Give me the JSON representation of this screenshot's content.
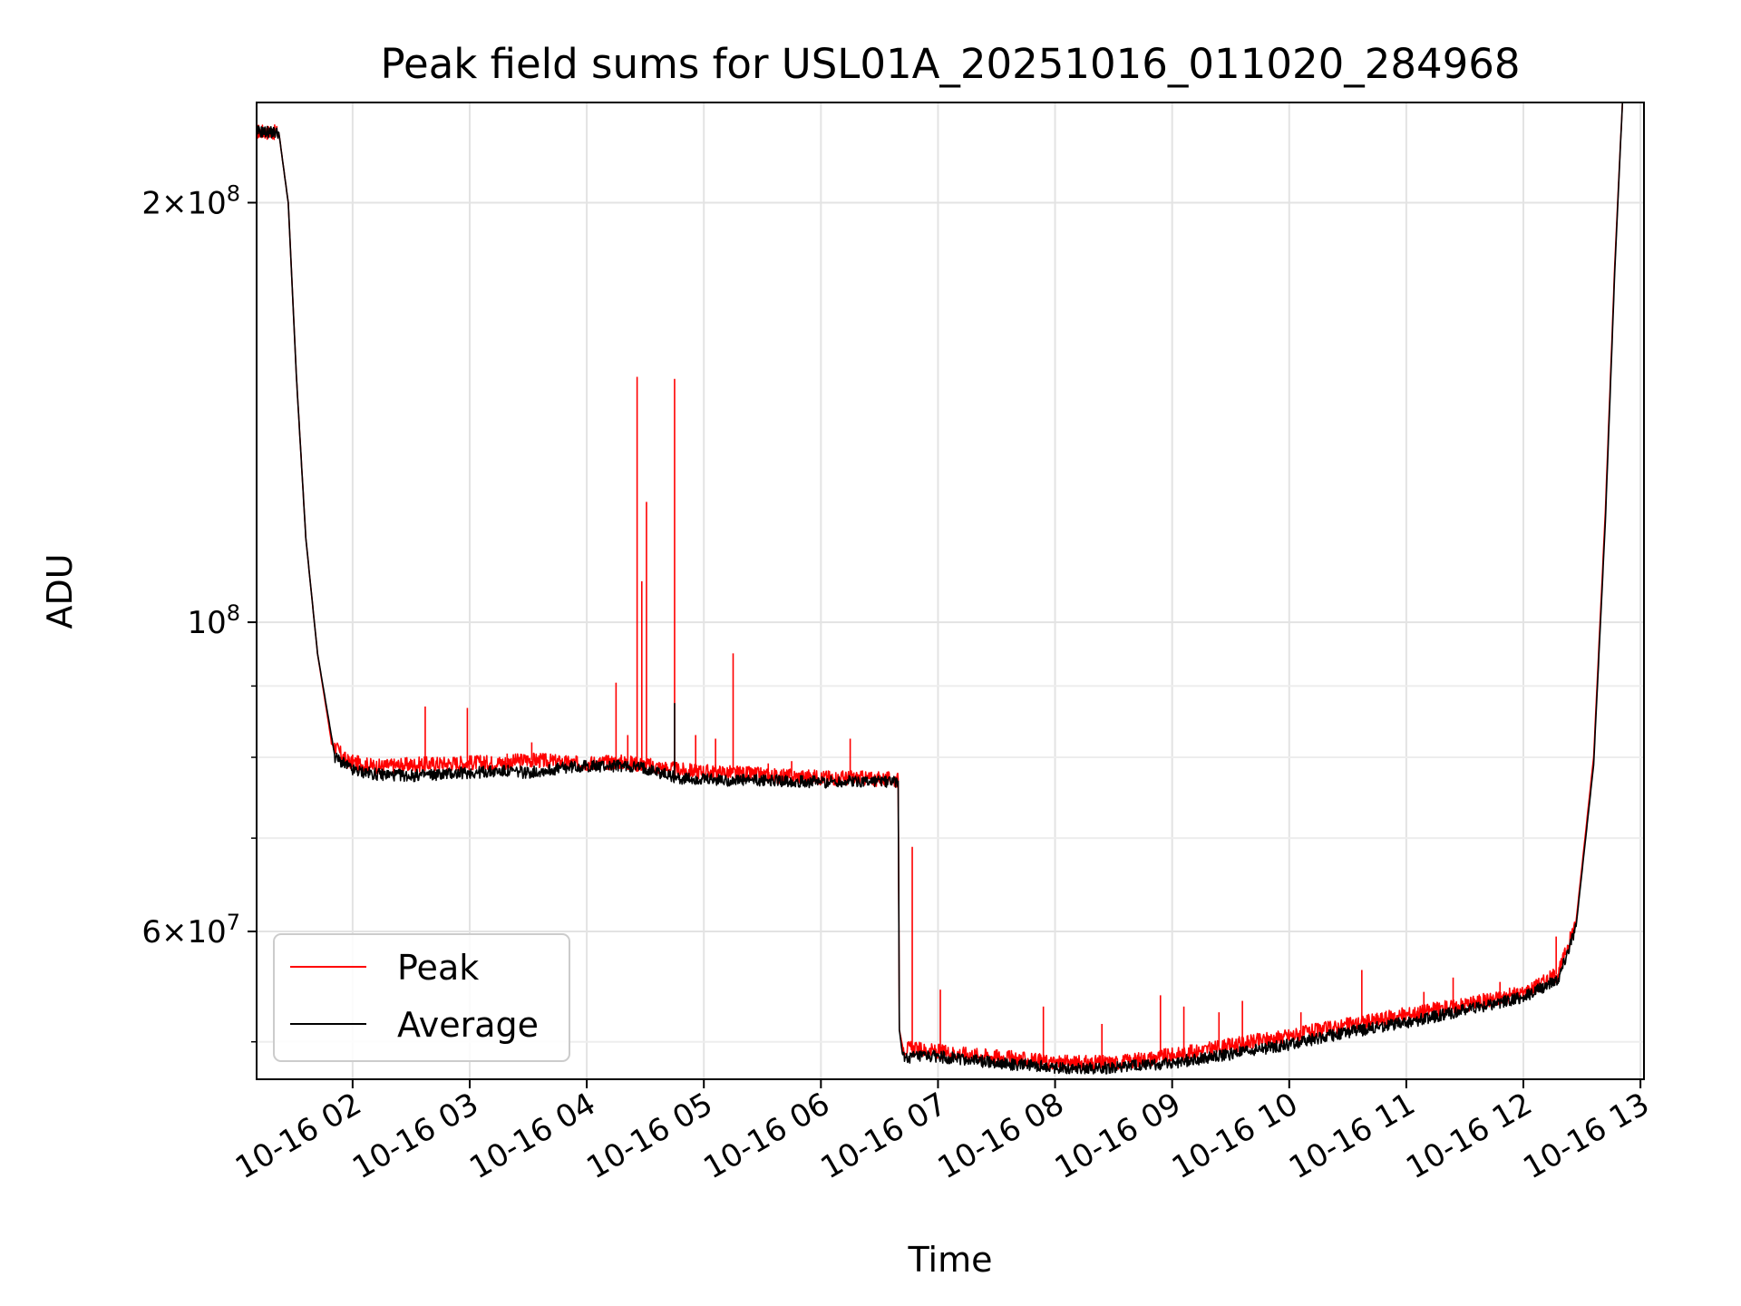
{
  "chart_data": {
    "type": "line",
    "title": "Peak field sums for USL01A_20251016_011020_284968",
    "xlabel": "Time",
    "ylabel": "ADU",
    "yscale": "log",
    "xlim_hours": [
      1.18,
      13.03
    ],
    "ylim": [
      47000000,
      236000000
    ],
    "grid": true,
    "legend_position": "lower-left",
    "x_ticks": [
      {
        "hour": 2,
        "label": "10-16 02"
      },
      {
        "hour": 3,
        "label": "10-16 03"
      },
      {
        "hour": 4,
        "label": "10-16 04"
      },
      {
        "hour": 5,
        "label": "10-16 05"
      },
      {
        "hour": 6,
        "label": "10-16 06"
      },
      {
        "hour": 7,
        "label": "10-16 07"
      },
      {
        "hour": 8,
        "label": "10-16 08"
      },
      {
        "hour": 9,
        "label": "10-16 09"
      },
      {
        "hour": 10,
        "label": "10-16 10"
      },
      {
        "hour": 11,
        "label": "10-16 11"
      },
      {
        "hour": 12,
        "label": "10-16 12"
      },
      {
        "hour": 13,
        "label": "10-16 13"
      }
    ],
    "y_major_ticks": [
      {
        "value": 60000000,
        "mantissa": "6",
        "exponent": "7"
      },
      {
        "value": 100000000,
        "mantissa": "",
        "exponent": "8"
      },
      {
        "value": 200000000,
        "mantissa": "2",
        "exponent": "8"
      }
    ],
    "y_minor_ticks": [
      50000000,
      70000000,
      80000000,
      90000000
    ],
    "series": [
      {
        "name": "Peak",
        "color": "#ff0000",
        "baseline": [
          [
            1.18,
            225000000
          ],
          [
            1.37,
            224500000
          ],
          [
            1.45,
            200000000
          ],
          [
            1.52,
            150000000
          ],
          [
            1.6,
            115000000
          ],
          [
            1.7,
            95000000
          ],
          [
            1.82,
            82000000
          ],
          [
            1.95,
            79500000
          ],
          [
            2.2,
            78800000
          ],
          [
            2.6,
            79100000
          ],
          [
            3.0,
            79300000
          ],
          [
            3.3,
            79300000
          ],
          [
            3.5,
            79700000
          ],
          [
            3.9,
            79200000
          ],
          [
            4.3,
            79400000
          ],
          [
            4.5,
            79000000
          ],
          [
            4.8,
            78300000
          ],
          [
            5.2,
            78000000
          ],
          [
            5.6,
            77600000
          ],
          [
            6.0,
            77400000
          ],
          [
            6.3,
            77300000
          ],
          [
            6.66,
            77100000
          ],
          [
            6.67,
            51000000
          ],
          [
            6.7,
            49500000
          ],
          [
            7.0,
            49200000
          ],
          [
            7.5,
            48800000
          ],
          [
            8.0,
            48300000
          ],
          [
            8.5,
            48300000
          ],
          [
            9.0,
            48900000
          ],
          [
            9.5,
            49700000
          ],
          [
            10.0,
            50500000
          ],
          [
            10.5,
            51400000
          ],
          [
            11.0,
            52300000
          ],
          [
            11.5,
            53200000
          ],
          [
            12.0,
            54200000
          ],
          [
            12.3,
            56000000
          ],
          [
            12.45,
            61000000
          ],
          [
            12.6,
            80000000
          ],
          [
            12.7,
            120000000
          ],
          [
            12.78,
            180000000
          ],
          [
            12.85,
            240000000
          ]
        ],
        "spikes": [
          [
            2.62,
            87000000
          ],
          [
            2.98,
            86800000
          ],
          [
            3.32,
            80500000
          ],
          [
            3.53,
            82000000
          ],
          [
            4.25,
            90500000
          ],
          [
            4.35,
            83000000
          ],
          [
            4.43,
            150000000
          ],
          [
            4.47,
            107000000
          ],
          [
            4.51,
            122000000
          ],
          [
            4.75,
            149500000
          ],
          [
            4.93,
            83000000
          ],
          [
            5.1,
            82500000
          ],
          [
            5.25,
            95000000
          ],
          [
            5.55,
            79200000
          ],
          [
            5.75,
            79500000
          ],
          [
            6.25,
            82500000
          ],
          [
            6.78,
            69000000
          ],
          [
            7.02,
            54500000
          ],
          [
            7.9,
            53000000
          ],
          [
            8.4,
            51500000
          ],
          [
            8.9,
            54000000
          ],
          [
            9.1,
            53000000
          ],
          [
            9.4,
            52500000
          ],
          [
            9.6,
            53500000
          ],
          [
            10.1,
            52500000
          ],
          [
            10.62,
            56300000
          ],
          [
            10.9,
            52500000
          ],
          [
            11.15,
            54300000
          ],
          [
            11.4,
            55600000
          ],
          [
            11.8,
            55200000
          ],
          [
            12.12,
            55400000
          ],
          [
            12.28,
            59500000
          ]
        ]
      },
      {
        "name": "Average",
        "color": "#000000",
        "baseline": [
          [
            1.18,
            225000000
          ],
          [
            1.37,
            224500000
          ],
          [
            1.45,
            200000000
          ],
          [
            1.52,
            150000000
          ],
          [
            1.6,
            115000000
          ],
          [
            1.7,
            95000000
          ],
          [
            1.85,
            80000000
          ],
          [
            2.0,
            78300000
          ],
          [
            2.2,
            77800000
          ],
          [
            2.5,
            77600000
          ],
          [
            3.0,
            78000000
          ],
          [
            3.3,
            78200000
          ],
          [
            3.5,
            78000000
          ],
          [
            3.9,
            78800000
          ],
          [
            4.3,
            78900000
          ],
          [
            4.5,
            78600000
          ],
          [
            4.8,
            77200000
          ],
          [
            5.2,
            77000000
          ],
          [
            5.6,
            77000000
          ],
          [
            6.0,
            76800000
          ],
          [
            6.3,
            76900000
          ],
          [
            6.66,
            76900000
          ],
          [
            6.67,
            51000000
          ],
          [
            6.7,
            48700000
          ],
          [
            7.0,
            48800000
          ],
          [
            7.5,
            48300000
          ],
          [
            8.0,
            47900000
          ],
          [
            8.5,
            47900000
          ],
          [
            9.0,
            48300000
          ],
          [
            9.5,
            49000000
          ],
          [
            10.0,
            49800000
          ],
          [
            10.5,
            50800000
          ],
          [
            11.0,
            51600000
          ],
          [
            11.5,
            52700000
          ],
          [
            12.0,
            53800000
          ],
          [
            12.3,
            55500000
          ],
          [
            12.45,
            60500000
          ],
          [
            12.6,
            79000000
          ],
          [
            12.7,
            118000000
          ],
          [
            12.78,
            178000000
          ],
          [
            12.85,
            240000000
          ]
        ],
        "spikes": [
          [
            4.75,
            87500000
          ],
          [
            6.67,
            51000000
          ]
        ]
      }
    ]
  }
}
